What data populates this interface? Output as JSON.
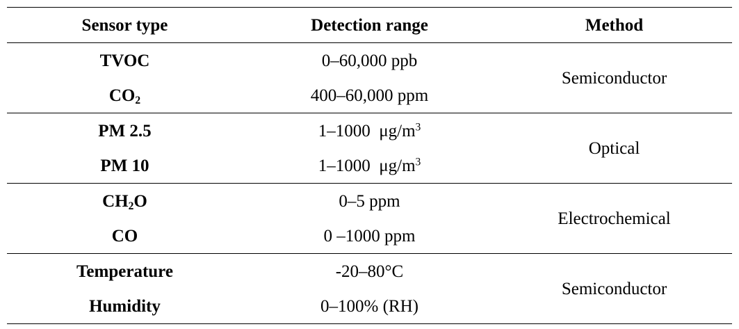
{
  "table": {
    "headers": [
      "Sensor type",
      "Detection range",
      "Method"
    ],
    "groups": [
      {
        "method": "Semiconductor",
        "rows": [
          {
            "sensor": "TVOC",
            "range": "0–60,000 ppb"
          },
          {
            "sensor_base": "CO",
            "sensor_sub": "2",
            "range": "400–60,000 ppm"
          }
        ]
      },
      {
        "method": "Optical",
        "rows": [
          {
            "sensor": "PM 2.5",
            "range_base": "1–1000  μg/m",
            "range_sup": "3"
          },
          {
            "sensor": "PM 10",
            "range_base": "1–1000  μg/m",
            "range_sup": "3"
          }
        ]
      },
      {
        "method": "Electrochemical",
        "rows": [
          {
            "sensor_pre": "CH",
            "sensor_sub": "2",
            "sensor_post": "O",
            "range": "0–5 ppm"
          },
          {
            "sensor": "CO",
            "range": "0 –1000 ppm"
          }
        ]
      },
      {
        "method": "Semiconductor",
        "rows": [
          {
            "sensor": "Temperature",
            "range": "-20–80°C"
          },
          {
            "sensor": "Humidity",
            "range": "0–100% (RH)"
          }
        ]
      }
    ]
  }
}
